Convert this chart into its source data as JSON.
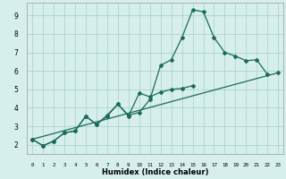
{
  "xlabel": "Humidex (Indice chaleur)",
  "xlim": [
    -0.5,
    23.5
  ],
  "ylim": [
    1.5,
    9.7
  ],
  "xticks": [
    0,
    1,
    2,
    3,
    4,
    5,
    6,
    7,
    8,
    9,
    10,
    11,
    12,
    13,
    14,
    15,
    16,
    17,
    18,
    19,
    20,
    21,
    22,
    23
  ],
  "yticks": [
    2,
    3,
    4,
    5,
    6,
    7,
    8,
    9
  ],
  "bg_color": "#d6efec",
  "grid_color": "#aed4cf",
  "line_color": "#1a6b5a",
  "line1_x": [
    0,
    1,
    2,
    3,
    4,
    5,
    6,
    7,
    8,
    9,
    10,
    11,
    12,
    13,
    14,
    15,
    16,
    17,
    18,
    19,
    20,
    21,
    22
  ],
  "line1_y": [
    2.3,
    1.95,
    2.2,
    2.65,
    2.75,
    3.55,
    3.1,
    3.6,
    4.2,
    3.6,
    3.75,
    4.45,
    6.3,
    6.6,
    7.8,
    9.3,
    9.2,
    7.8,
    7.0,
    6.8,
    6.55,
    6.6,
    5.8
  ],
  "line2_x": [
    0,
    1,
    2,
    3,
    4,
    5,
    6,
    7,
    8,
    9,
    10,
    11,
    12,
    13,
    14,
    15
  ],
  "line2_y": [
    2.3,
    1.95,
    2.2,
    2.65,
    2.75,
    3.55,
    3.1,
    3.55,
    4.2,
    3.55,
    4.8,
    4.6,
    4.85,
    5.0,
    5.05,
    5.2
  ],
  "line3_x": [
    0,
    23
  ],
  "line3_y": [
    2.3,
    5.9
  ],
  "marker": "D",
  "markersize": 2.0,
  "linewidth": 0.9
}
